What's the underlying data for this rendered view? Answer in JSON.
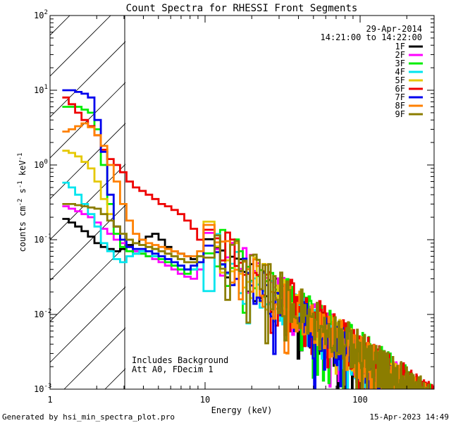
{
  "chart_data": {
    "type": "line",
    "title": "Count Spectra for RHESSI Front Segments",
    "xlabel": "Energy (keV)",
    "ylabel_parts": [
      "counts cm",
      "-2",
      " s",
      "-1",
      " keV",
      "-1"
    ],
    "xscale": "log",
    "yscale": "log",
    "xlim": [
      1,
      300
    ],
    "ylim": [
      0.001,
      100
    ],
    "x_ticks": [
      {
        "v": 1,
        "label": "1"
      },
      {
        "v": 10,
        "label": "10"
      },
      {
        "v": 100,
        "label": "100"
      }
    ],
    "y_ticks": [
      {
        "v": 0.001,
        "base": "10",
        "exp": "-3"
      },
      {
        "v": 0.01,
        "base": "10",
        "exp": "-2"
      },
      {
        "v": 0.1,
        "base": "10",
        "exp": "-1"
      },
      {
        "v": 1,
        "base": "10",
        "exp": "0"
      },
      {
        "v": 10,
        "base": "10",
        "exp": "1"
      },
      {
        "v": 100,
        "base": "10",
        "exp": "2"
      }
    ],
    "hatch_region_kev": [
      1,
      3
    ],
    "date": "29-Apr-2014",
    "time_range": "14:21:00 to 14:22:00",
    "annotations": [
      "Includes Background",
      "Att A0, FDecim 1"
    ],
    "footer_left": "Generated by hsi_min_spectra_plot.pro",
    "footer_right": "15-Apr-2023 14:49",
    "series": [
      {
        "name": "1F",
        "color": "#000000",
        "low": [
          0.19,
          0.17,
          0.15,
          0.13,
          0.11,
          0.09,
          0.08,
          0.075,
          0.07,
          0.075,
          0.085,
          0.09,
          0.1,
          0.11,
          0.12,
          0.1,
          0.08,
          0.07,
          0.065,
          0.06,
          0.055,
          0.06
        ]
      },
      {
        "name": "2F",
        "color": "#ff00ff",
        "low": [
          0.28,
          0.26,
          0.24,
          0.22,
          0.2,
          0.17,
          0.14,
          0.12,
          0.1,
          0.09,
          0.08,
          0.07,
          0.065,
          0.06,
          0.055,
          0.05,
          0.045,
          0.04,
          0.035,
          0.032,
          0.03,
          0.04
        ]
      },
      {
        "name": "3F",
        "color": "#00ee00",
        "low": [
          6.0,
          6.0,
          6.0,
          5.5,
          5.0,
          3.0,
          1.0,
          0.3,
          0.12,
          0.08,
          0.07,
          0.065,
          0.065,
          0.06,
          0.06,
          0.055,
          0.05,
          0.045,
          0.04,
          0.035,
          0.04,
          0.05
        ]
      },
      {
        "name": "4F",
        "color": "#00e5ee",
        "low": [
          0.58,
          0.5,
          0.4,
          0.3,
          0.22,
          0.15,
          0.09,
          0.07,
          0.055,
          0.05,
          0.06,
          0.065,
          0.07,
          0.07,
          0.06,
          0.06,
          0.055,
          0.05,
          0.045,
          0.04,
          0.04,
          0.05
        ]
      },
      {
        "name": "5F",
        "color": "#e5c800",
        "low": [
          1.55,
          1.45,
          1.3,
          1.1,
          0.9,
          0.6,
          0.35,
          0.22,
          0.15,
          0.12,
          0.1,
          0.09,
          0.085,
          0.08,
          0.075,
          0.07,
          0.065,
          0.06,
          0.055,
          0.05,
          0.05,
          0.06
        ]
      },
      {
        "name": "6F",
        "color": "#ee0000",
        "low": [
          8.0,
          6.5,
          5.0,
          4.0,
          3.3,
          2.5,
          1.6,
          1.2,
          1.0,
          0.8,
          0.6,
          0.5,
          0.45,
          0.4,
          0.35,
          0.3,
          0.28,
          0.25,
          0.22,
          0.18,
          0.14,
          0.1
        ]
      },
      {
        "name": "7F",
        "color": "#0000ee",
        "low": [
          10.0,
          10.0,
          9.5,
          9.0,
          8.0,
          4.0,
          1.5,
          0.4,
          0.15,
          0.1,
          0.08,
          0.075,
          0.075,
          0.07,
          0.065,
          0.06,
          0.055,
          0.05,
          0.045,
          0.04,
          0.045,
          0.05
        ]
      },
      {
        "name": "8F",
        "color": "#ff8000",
        "low": [
          2.8,
          3.0,
          3.3,
          3.6,
          3.2,
          2.5,
          1.8,
          1.0,
          0.6,
          0.3,
          0.18,
          0.12,
          0.1,
          0.09,
          0.085,
          0.08,
          0.075,
          0.07,
          0.065,
          0.06,
          0.06,
          0.07
        ]
      },
      {
        "name": "9F",
        "color": "#8b7d00",
        "low": [
          0.3,
          0.3,
          0.29,
          0.28,
          0.27,
          0.26,
          0.22,
          0.18,
          0.15,
          0.12,
          0.1,
          0.09,
          0.085,
          0.08,
          0.075,
          0.07,
          0.065,
          0.06,
          0.055,
          0.05,
          0.05,
          0.06
        ]
      }
    ]
  }
}
